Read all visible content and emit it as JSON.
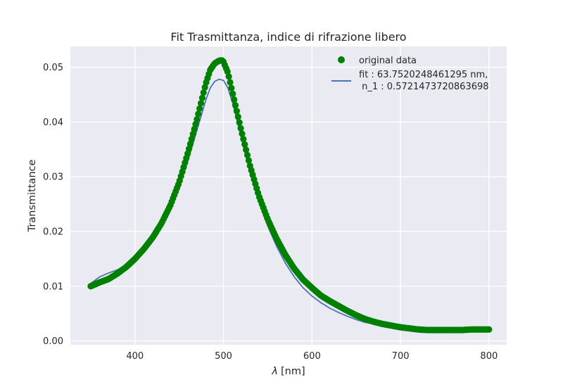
{
  "chart_data": {
    "type": "scatter",
    "title": "Fit Trasmittanza, indice di rifrazione libero",
    "xlabel_symbol": "λ",
    "xlabel_unit": "[nm]",
    "ylabel": "Transmittance",
    "xlim": [
      327,
      820
    ],
    "ylim": [
      -0.0007,
      0.0538
    ],
    "xticks": [
      400,
      500,
      600,
      700,
      800
    ],
    "yticks": [
      0.0,
      0.01,
      0.02,
      0.03,
      0.04,
      0.05
    ],
    "xtick_labels": [
      "400",
      "500",
      "600",
      "700",
      "800"
    ],
    "ytick_labels": [
      "0.00",
      "0.01",
      "0.02",
      "0.03",
      "0.04",
      "0.05"
    ],
    "grid": true,
    "legend_position": "top-right",
    "series": [
      {
        "name": "original data",
        "kind": "markers",
        "color": "#008000",
        "x": [
          350,
          360,
          370,
          380,
          390,
          400,
          410,
          420,
          430,
          440,
          450,
          460,
          470,
          480,
          485,
          490,
          495,
          498,
          500,
          505,
          510,
          515,
          520,
          530,
          540,
          550,
          560,
          570,
          580,
          590,
          600,
          610,
          620,
          630,
          640,
          650,
          660,
          670,
          680,
          690,
          700,
          710,
          720,
          730,
          740,
          750,
          760,
          770,
          780,
          790,
          800
        ],
        "y": [
          0.01,
          0.0107,
          0.0113,
          0.0123,
          0.0135,
          0.015,
          0.0168,
          0.0189,
          0.0215,
          0.0248,
          0.029,
          0.0345,
          0.0405,
          0.047,
          0.0495,
          0.0507,
          0.0512,
          0.0513,
          0.051,
          0.049,
          0.0455,
          0.042,
          0.0385,
          0.032,
          0.0265,
          0.0222,
          0.0187,
          0.0157,
          0.0132,
          0.0112,
          0.0097,
          0.0083,
          0.0073,
          0.0064,
          0.0055,
          0.0047,
          0.004,
          0.0035,
          0.0031,
          0.0028,
          0.0025,
          0.0023,
          0.0021,
          0.002,
          0.002,
          0.002,
          0.002,
          0.002,
          0.0021,
          0.0021,
          0.0021
        ]
      },
      {
        "name_line1": "fit : 63.7520248461295 nm,",
        "name_line2": " n_1 : 0.5721473720863698",
        "kind": "line",
        "color": "#4c72b0",
        "x": [
          350,
          360,
          370,
          380,
          390,
          400,
          410,
          420,
          430,
          440,
          450,
          460,
          470,
          480,
          485,
          490,
          495,
          500,
          505,
          510,
          515,
          520,
          530,
          540,
          550,
          560,
          570,
          580,
          590,
          600,
          610,
          620,
          630,
          640,
          650,
          660,
          670,
          680,
          690,
          700,
          710,
          720,
          730,
          740,
          750,
          760,
          770,
          780,
          790,
          800
        ],
        "y": [
          0.0105,
          0.0117,
          0.0124,
          0.013,
          0.0138,
          0.015,
          0.0165,
          0.0185,
          0.021,
          0.024,
          0.028,
          0.033,
          0.0385,
          0.044,
          0.0462,
          0.0474,
          0.0478,
          0.0476,
          0.0462,
          0.0437,
          0.0405,
          0.0372,
          0.0308,
          0.0255,
          0.021,
          0.0173,
          0.0142,
          0.0117,
          0.0097,
          0.0082,
          0.007,
          0.006,
          0.0052,
          0.0045,
          0.0039,
          0.0034,
          0.0031,
          0.0028,
          0.0026,
          0.0024,
          0.0023,
          0.0022,
          0.0021,
          0.0021,
          0.0021,
          0.0021,
          0.0021,
          0.0021,
          0.0021,
          0.0021
        ]
      }
    ]
  }
}
